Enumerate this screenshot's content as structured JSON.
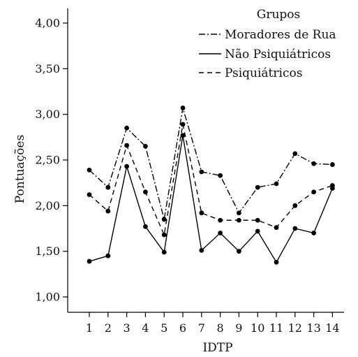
{
  "chart_data": {
    "type": "line",
    "xlabel": "IDTP",
    "ylabel": "Pontuações",
    "x": [
      "1",
      "2",
      "3",
      "4",
      "5",
      "6",
      "7",
      "8",
      "9",
      "10",
      "11",
      "12",
      "13",
      "14"
    ],
    "ylim": [
      0.8,
      4.1
    ],
    "yticks": [
      "1,00",
      "1,50",
      "2,00",
      "2,50",
      "3,00",
      "3,50",
      "4,00"
    ],
    "ytick_values": [
      1.0,
      1.5,
      2.0,
      2.5,
      3.0,
      3.5,
      4.0
    ],
    "legend_title": "Grupos",
    "legend_position": "top-right",
    "series": [
      {
        "name": "Moradores de Rua",
        "dash": "dash-dot",
        "values": [
          2.39,
          2.2,
          2.85,
          2.65,
          1.85,
          3.07,
          2.37,
          2.33,
          1.92,
          2.2,
          2.24,
          2.57,
          2.46,
          2.45
        ]
      },
      {
        "name": "Não Psiquiátricos",
        "dash": "solid",
        "values": [
          1.39,
          1.45,
          2.43,
          1.77,
          1.49,
          2.77,
          1.51,
          1.7,
          1.5,
          1.72,
          1.38,
          1.75,
          1.7,
          2.19
        ]
      },
      {
        "name": "Psiquiátricos",
        "dash": "dashed",
        "values": [
          2.12,
          1.94,
          2.66,
          2.15,
          1.68,
          2.89,
          1.92,
          1.84,
          1.84,
          1.84,
          1.76,
          2.0,
          2.15,
          2.22
        ]
      }
    ]
  }
}
